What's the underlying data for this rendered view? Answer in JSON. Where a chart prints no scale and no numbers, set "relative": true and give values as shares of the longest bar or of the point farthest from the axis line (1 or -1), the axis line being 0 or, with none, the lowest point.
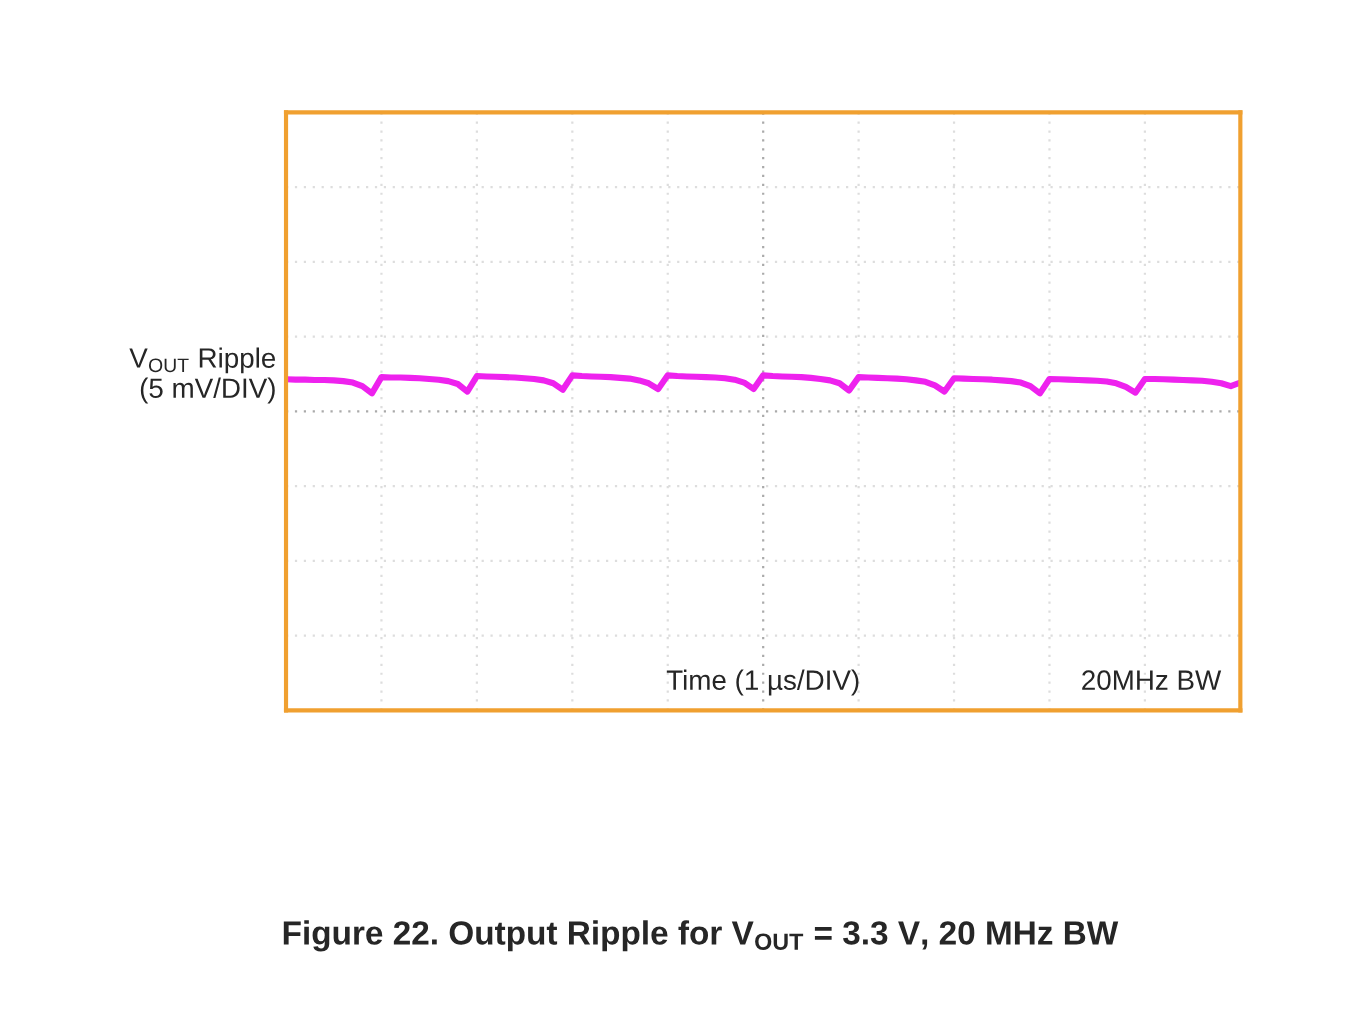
{
  "chart_data": {
    "type": "line",
    "title": "Figure 22. Output Ripple for V$_{OUT}$ = 3.3 V, 20 MHz BW",
    "ylabel": "V$_{OUT}$ Ripple\n(5 mV/DIV)",
    "annotations": [
      "Time (1 µs/DIV)",
      "20MHz BW"
    ],
    "relative": true,
    "grid": true,
    "categories": [
      null,
      null,
      null,
      null,
      null,
      null,
      null,
      null,
      null,
      null,
      null,
      null,
      null,
      null,
      null,
      null,
      null,
      null,
      null,
      null,
      null,
      null,
      null,
      null,
      null,
      null,
      null,
      null,
      null,
      null,
      null,
      null,
      null,
      null,
      null,
      null,
      null,
      null,
      null,
      null,
      null,
      null,
      null,
      null,
      null,
      null,
      null,
      null,
      null,
      null,
      null,
      null,
      null,
      null,
      null,
      null,
      null,
      null,
      null,
      null,
      null,
      null,
      null,
      null,
      null,
      null,
      null,
      null,
      null,
      null,
      null,
      null,
      null,
      null,
      null,
      null,
      null,
      null,
      null,
      null,
      null,
      null,
      null,
      null,
      null,
      null,
      null,
      null,
      null,
      null,
      null,
      null,
      null,
      null,
      null,
      null,
      null,
      null,
      null,
      null,
      null
    ],
    "series": [
      {
        "color": "#ee22ee",
        "values": [
          0.89,
          0.88,
          0.88,
          0.87,
          0.87,
          0.86,
          0.84,
          0.8,
          0.7,
          0.5,
          0.95,
          0.94,
          0.94,
          0.93,
          0.92,
          0.9,
          0.88,
          0.84,
          0.76,
          0.55,
          0.98,
          0.97,
          0.96,
          0.95,
          0.94,
          0.92,
          0.9,
          0.86,
          0.78,
          0.6,
          1.0,
          0.98,
          0.97,
          0.96,
          0.95,
          0.93,
          0.91,
          0.86,
          0.78,
          0.62,
          1.0,
          0.98,
          0.97,
          0.96,
          0.95,
          0.94,
          0.92,
          0.88,
          0.8,
          0.62,
          1.0,
          0.98,
          0.97,
          0.96,
          0.95,
          0.93,
          0.9,
          0.86,
          0.78,
          0.58,
          0.95,
          0.94,
          0.93,
          0.92,
          0.91,
          0.89,
          0.86,
          0.82,
          0.72,
          0.55,
          0.92,
          0.91,
          0.9,
          0.89,
          0.88,
          0.86,
          0.84,
          0.8,
          0.7,
          0.5,
          0.9,
          0.89,
          0.88,
          0.87,
          0.86,
          0.85,
          0.83,
          0.78,
          0.68,
          0.52,
          0.9,
          0.9,
          0.89,
          0.88,
          0.87,
          0.86,
          0.85,
          0.82,
          0.78,
          0.7,
          0.8
        ]
      }
    ]
  }
}
